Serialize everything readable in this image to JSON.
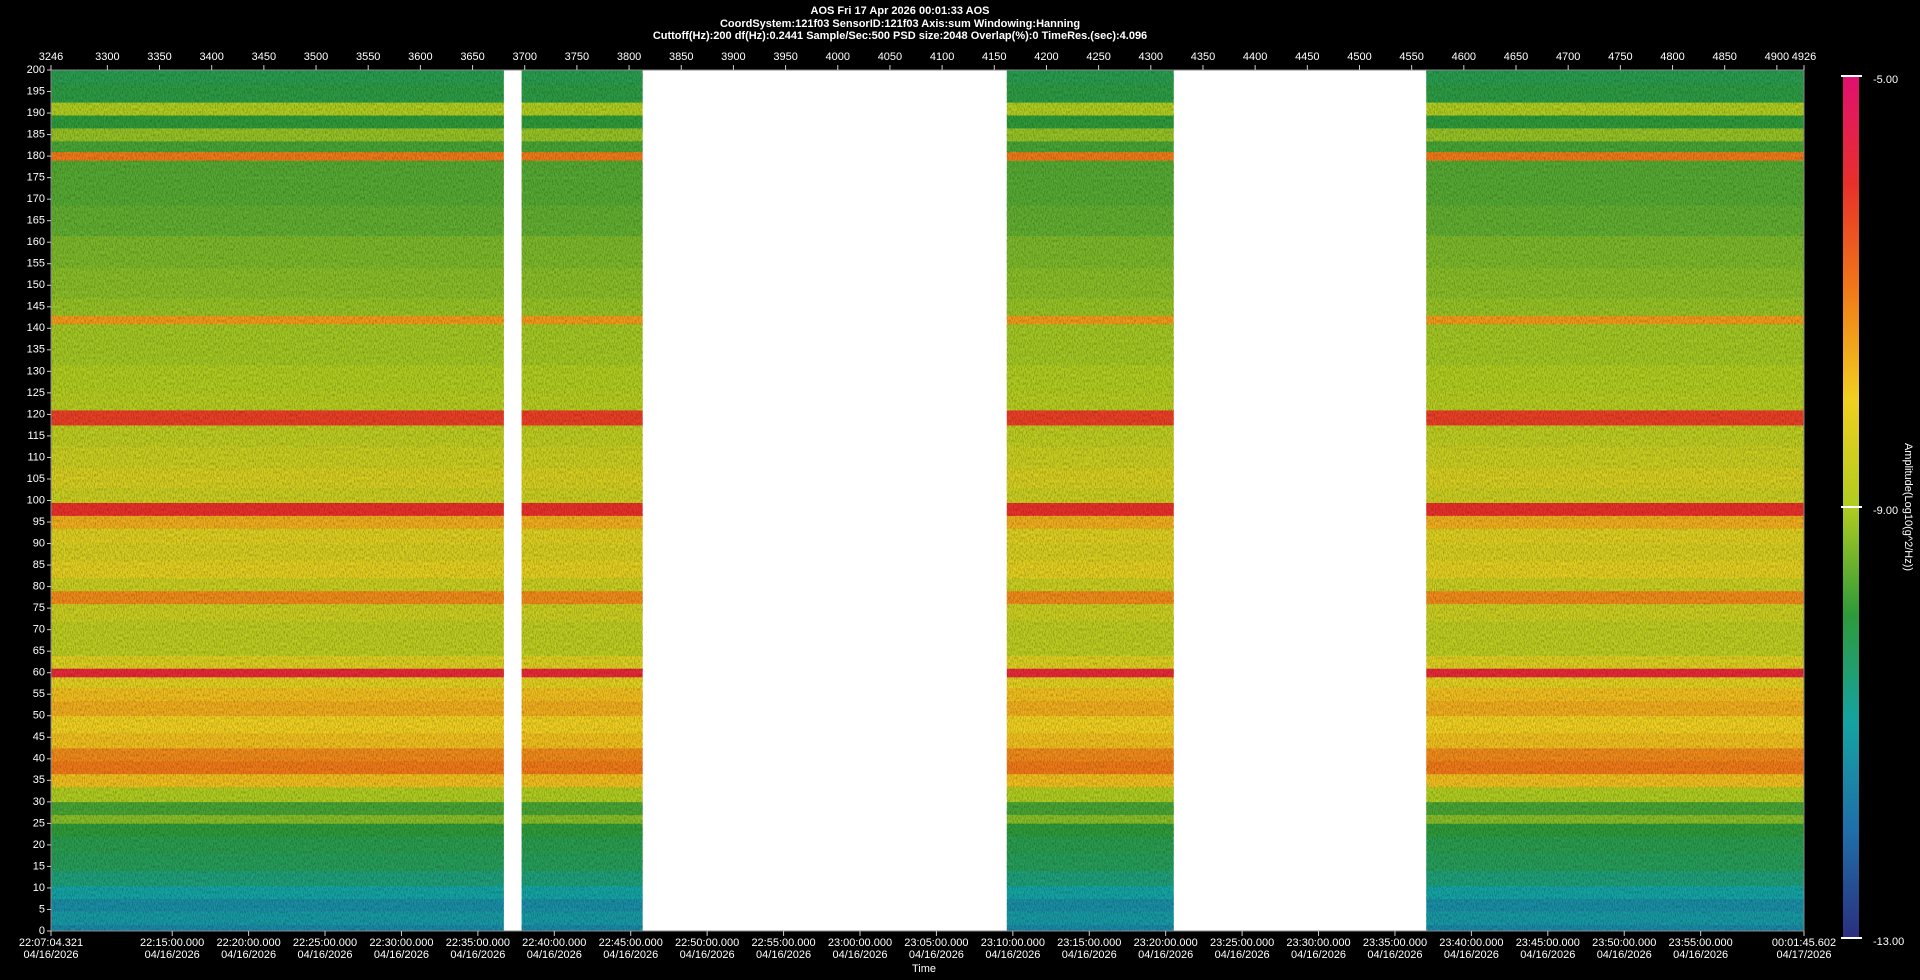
{
  "chart_data": {
    "type": "spectrogram",
    "title": "AOS  Fri 17 Apr 2026 00:01:33  AOS",
    "subtitle": [
      "CoordSystem:121f03   SensorID:121f03   Axis:sum   Windowing:Hanning",
      "Cuttoff(Hz):200   df(Hz):0.2441   Sample/Sec:500   PSD size:2048   Overlap(%):0   TimeRes.(sec):4.096"
    ],
    "xlabel": "Time",
    "colorbar_label": "Amplitude(Log10(g^2/Hz))",
    "xlim": [
      3246,
      4926
    ],
    "xticks": [
      3246,
      3300,
      3350,
      3400,
      3450,
      3500,
      3550,
      3600,
      3650,
      3700,
      3750,
      3800,
      3850,
      3900,
      3950,
      4000,
      4050,
      4100,
      4150,
      4200,
      4250,
      4300,
      4350,
      4400,
      4450,
      4500,
      4550,
      4600,
      4650,
      4700,
      4750,
      4800,
      4850,
      4900,
      4926
    ],
    "x2ticks": [
      {
        "value": 3246,
        "label": "22:07:04.321",
        "date": "04/16/2026"
      },
      {
        "value": 3362.13,
        "label": "22:15:00.000",
        "date": "04/16/2026"
      },
      {
        "value": 3435.37,
        "label": "22:20:00.000",
        "date": "04/16/2026"
      },
      {
        "value": 3508.61,
        "label": "22:25:00.000",
        "date": "04/16/2026"
      },
      {
        "value": 3581.85,
        "label": "22:30:00.000",
        "date": "04/16/2026"
      },
      {
        "value": 3655.1,
        "label": "22:35:00.000",
        "date": "04/16/2026"
      },
      {
        "value": 3728.34,
        "label": "22:40:00.000",
        "date": "04/16/2026"
      },
      {
        "value": 3801.58,
        "label": "22:45:00.000",
        "date": "04/16/2026"
      },
      {
        "value": 3874.82,
        "label": "22:50:00.000",
        "date": "04/16/2026"
      },
      {
        "value": 3948.06,
        "label": "22:55:00.000",
        "date": "04/16/2026"
      },
      {
        "value": 4021.3,
        "label": "23:00:00.000",
        "date": "04/16/2026"
      },
      {
        "value": 4094.54,
        "label": "23:05:00.000",
        "date": "04/16/2026"
      },
      {
        "value": 4167.79,
        "label": "23:10:00.000",
        "date": "04/16/2026"
      },
      {
        "value": 4241.03,
        "label": "23:15:00.000",
        "date": "04/16/2026"
      },
      {
        "value": 4314.27,
        "label": "23:20:00.000",
        "date": "04/16/2026"
      },
      {
        "value": 4387.51,
        "label": "23:25:00.000",
        "date": "04/16/2026"
      },
      {
        "value": 4460.75,
        "label": "23:30:00.000",
        "date": "04/16/2026"
      },
      {
        "value": 4533.99,
        "label": "23:35:00.000",
        "date": "04/16/2026"
      },
      {
        "value": 4607.23,
        "label": "23:40:00.000",
        "date": "04/16/2026"
      },
      {
        "value": 4680.48,
        "label": "23:45:00.000",
        "date": "04/16/2026"
      },
      {
        "value": 4753.72,
        "label": "23:50:00.000",
        "date": "04/16/2026"
      },
      {
        "value": 4826.96,
        "label": "23:55:00.000",
        "date": "04/16/2026"
      },
      {
        "value": 4926,
        "label": "00:01:45.602",
        "date": "04/17/2026"
      }
    ],
    "ylim": [
      0,
      200
    ],
    "yticks": [
      0,
      5,
      10,
      15,
      20,
      25,
      30,
      35,
      40,
      45,
      50,
      55,
      60,
      65,
      70,
      75,
      80,
      85,
      90,
      95,
      100,
      105,
      110,
      115,
      120,
      125,
      130,
      135,
      140,
      145,
      150,
      155,
      160,
      165,
      170,
      175,
      180,
      185,
      190,
      195,
      200
    ],
    "clim": [
      -13,
      -5
    ],
    "cticks": [
      {
        "value": -5,
        "label": "-5.00"
      },
      {
        "value": -9,
        "label": "-9.00"
      },
      {
        "value": -13,
        "label": "-13.00"
      }
    ],
    "colors": [
      "#2b2f7f",
      "#1f6fa8",
      "#15a3a3",
      "#2e9a3a",
      "#b0cc20",
      "#f0d020",
      "#f07a18",
      "#e8302a",
      "#e01070"
    ],
    "segments": [
      [
        3246,
        3680
      ],
      [
        3697,
        3813
      ],
      [
        4162,
        4322
      ],
      [
        4564,
        4926
      ]
    ],
    "profile": {
      "freq": [
        0,
        3,
        6,
        9,
        12,
        16,
        20,
        24,
        26,
        28,
        32,
        35,
        38,
        41,
        44,
        48,
        52,
        55,
        58,
        60,
        62,
        66,
        70,
        74,
        78,
        80,
        84,
        88,
        92,
        95,
        98,
        101,
        105,
        110,
        115,
        120,
        122,
        128,
        135,
        140,
        142,
        144,
        150,
        158,
        165,
        172,
        178,
        180,
        182,
        185,
        188,
        191,
        194,
        200
      ],
      "values": [
        -11.5,
        -11.2,
        -11.4,
        -11,
        -10.6,
        -10.3,
        -10.2,
        -10,
        -9.3,
        -9.8,
        -9,
        -7.8,
        -7,
        -7.2,
        -7.8,
        -8,
        -7.6,
        -7.8,
        -8.2,
        -5.8,
        -8.3,
        -8.8,
        -8.8,
        -8.6,
        -7.2,
        -8.6,
        -8.2,
        -8.4,
        -8.3,
        -7.6,
        -6,
        -8.6,
        -8.4,
        -8.6,
        -8.8,
        -6.2,
        -8.9,
        -9,
        -9.1,
        -9.1,
        -7.4,
        -9.2,
        -9.3,
        -9.4,
        -9.6,
        -9.7,
        -9.7,
        -7,
        -9.8,
        -9.2,
        -10,
        -9,
        -10.1,
        -10.2
      ]
    }
  }
}
